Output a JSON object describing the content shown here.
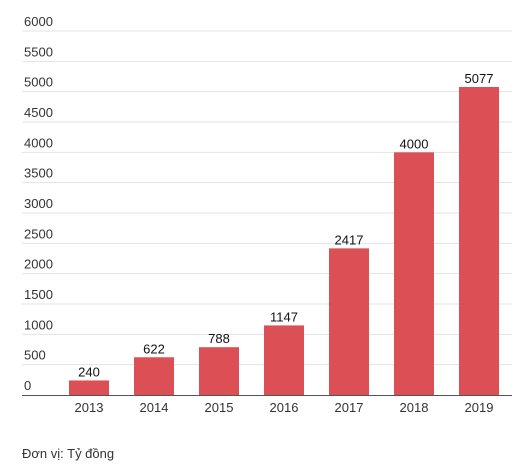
{
  "chart_data": {
    "type": "bar",
    "categories": [
      "2013",
      "2014",
      "2015",
      "2016",
      "2017",
      "2018",
      "2019"
    ],
    "values": [
      240,
      622,
      788,
      1147,
      2417,
      4000,
      5077
    ],
    "data_labels": [
      "240",
      "622",
      "788",
      "1147",
      "2417",
      "4000",
      "5077"
    ],
    "y_ticks": [
      "0",
      "500",
      "1000",
      "1500",
      "2000",
      "2500",
      "3000",
      "3500",
      "4000",
      "4500",
      "5000",
      "5500",
      "6000"
    ],
    "ylim": [
      0,
      6000
    ],
    "grid": true,
    "legend": "none",
    "bar_color": "#dc5055",
    "grid_color": "#e3e3e3",
    "axis_color": "#555555"
  },
  "unit_note": "Đơn vị: Tỷ đồng"
}
